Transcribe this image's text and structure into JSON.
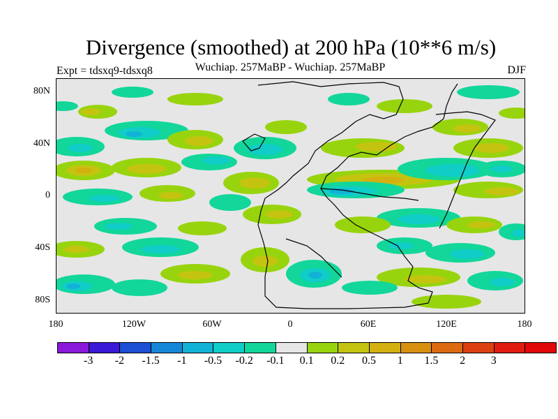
{
  "title": "Divergence (smoothed) at 200 hPa (10**6 m/s)",
  "subtitle": "Wuchiap. 257MaBP - Wuchiap. 257MaBP",
  "experiment": "Expt = tdsxq9-tdsxq8",
  "season": "DJF",
  "y_axis_labels": [
    "80N",
    "40N",
    "0",
    "40S",
    "80S"
  ],
  "x_axis_labels": [
    "180",
    "120W",
    "60W",
    "0",
    "60E",
    "120E",
    "180"
  ],
  "colorbar": {
    "colors": [
      "#8a19d9",
      "#3a1ad6",
      "#1c4fd4",
      "#1686d8",
      "#12b2d6",
      "#10cdc8",
      "#12d69a",
      "#e6e6e6",
      "#98d40e",
      "#c4c410",
      "#d4b010",
      "#d89010",
      "#dc6a10",
      "#dc4010",
      "#e01c10",
      "#e00808"
    ],
    "labels": [
      "-3",
      "-2",
      "-1.5",
      "-1",
      "-0.5",
      "-0.2",
      "-0.1",
      "0.1",
      "0.2",
      "0.5",
      "1",
      "1.5",
      "2",
      "3"
    ]
  },
  "map_colors": {
    "background": "#e6e6e6",
    "pos_light": "#98d40e",
    "pos_mid": "#c4c410",
    "pos_strong": "#d4b010",
    "neg_light": "#12d69a",
    "neg_mid": "#10cdc8",
    "neg_strong": "#12b2d6",
    "coast": "#000000"
  }
}
